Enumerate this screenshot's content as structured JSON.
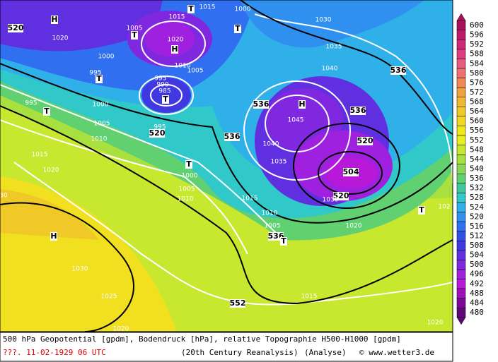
{
  "legend": {
    "levels": [
      600,
      596,
      592,
      588,
      584,
      580,
      576,
      572,
      568,
      564,
      560,
      556,
      552,
      548,
      544,
      540,
      536,
      532,
      528,
      524,
      520,
      516,
      512,
      508,
      504,
      500,
      496,
      492,
      488,
      484,
      480
    ],
    "colors": [
      "#a8105a",
      "#c0186c",
      "#d02878",
      "#e03c80",
      "#e85a80",
      "#f07070",
      "#f08858",
      "#f0a040",
      "#f0b830",
      "#f0c828",
      "#f0d820",
      "#f0e818",
      "#e8f020",
      "#c8e830",
      "#a8e040",
      "#88d858",
      "#60d070",
      "#40c898",
      "#30c8c8",
      "#30b0e8",
      "#3090f0",
      "#3070f0",
      "#3050e8",
      "#4038e0",
      "#6030e0",
      "#8028e0",
      "#a020e0",
      "#b818d8",
      "#a010b8",
      "#800898",
      "#600878"
    ]
  },
  "map": {
    "labels": [
      "520",
      "H",
      "1020",
      "1005",
      "T",
      "1015",
      "T",
      "1015",
      "1000",
      "T",
      "1020",
      "H",
      "1000",
      "995",
      "T",
      "1010",
      "1005",
      "995",
      "990",
      "985",
      "T",
      "995",
      "T",
      "1000",
      "1005",
      "995",
      "520",
      "1010",
      "536",
      "536",
      "H",
      "1045",
      "1040",
      "1035",
      "536",
      "536",
      "1030",
      "1035",
      "1040",
      "520",
      "504",
      "520",
      "1015",
      "1020",
      "T",
      "1000",
      "1005",
      "1010",
      "1015",
      "1010",
      "1005",
      "536",
      "T",
      "1030",
      "1020",
      "T",
      "H",
      "1030",
      "1025",
      "552",
      "1015",
      "1020",
      "1020",
      "30",
      "102"
    ]
  },
  "footer": {
    "description": "500 hPa Geopotential [gpdm], Bodendruck [hPa], relative Topographie H500-H1000 [gpdm]",
    "date": "???. 11-02-1929 06 UTC",
    "source": "(20th Century Reanalysis)",
    "mode": "(Analyse)",
    "credit": "© www.wetter3.de"
  }
}
